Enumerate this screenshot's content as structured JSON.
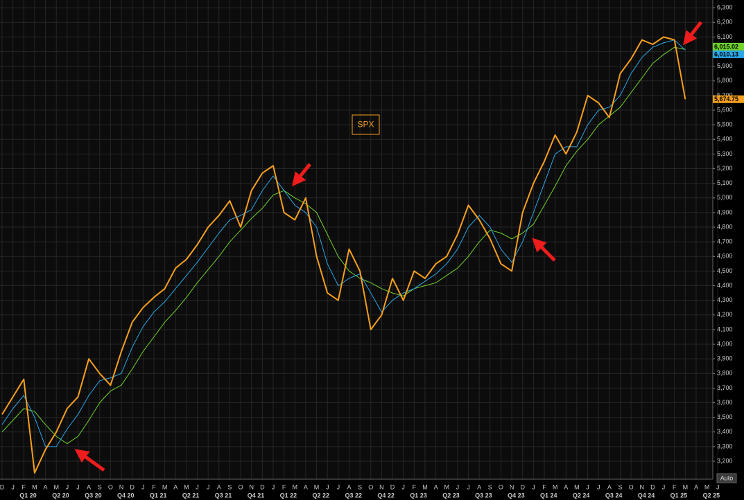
{
  "chart_data": {
    "type": "line",
    "x": [
      "2019-12",
      "2020-01",
      "2020-02",
      "2020-03",
      "2020-04",
      "2020-05",
      "2020-06",
      "2020-07",
      "2020-08",
      "2020-09",
      "2020-10",
      "2020-11",
      "2020-12",
      "2021-01",
      "2021-02",
      "2021-03",
      "2021-04",
      "2021-05",
      "2021-06",
      "2021-07",
      "2021-08",
      "2021-09",
      "2021-10",
      "2021-11",
      "2021-12",
      "2022-01",
      "2022-02",
      "2022-03",
      "2022-04",
      "2022-05",
      "2022-06",
      "2022-07",
      "2022-08",
      "2022-09",
      "2022-10",
      "2022-11",
      "2022-12",
      "2023-01",
      "2023-02",
      "2023-03",
      "2023-04",
      "2023-05",
      "2023-06",
      "2023-07",
      "2023-08",
      "2023-09",
      "2023-10",
      "2023-11",
      "2023-12",
      "2024-01",
      "2024-02",
      "2024-03",
      "2024-04",
      "2024-05",
      "2024-06",
      "2024-07",
      "2024-08",
      "2024-09",
      "2024-10",
      "2024-11",
      "2024-12",
      "2025-01",
      "2025-02",
      "2025-03"
    ],
    "series": [
      {
        "name": "SPX",
        "color": "#f7a01e",
        "last_label": "5,674.75",
        "values": [
          3520,
          3640,
          3760,
          3120,
          3280,
          3400,
          3560,
          3640,
          3900,
          3800,
          3720,
          3950,
          4150,
          4250,
          4320,
          4380,
          4520,
          4580,
          4680,
          4800,
          4880,
          4980,
          4800,
          5050,
          5170,
          5220,
          4900,
          4850,
          5000,
          4600,
          4350,
          4300,
          4650,
          4500,
          4100,
          4200,
          4450,
          4300,
          4500,
          4450,
          4550,
          4600,
          4750,
          4950,
          4850,
          4720,
          4550,
          4500,
          4900,
          5100,
          5250,
          5430,
          5300,
          5450,
          5700,
          5650,
          5550,
          5850,
          5950,
          6080,
          6050,
          6100,
          6080,
          5674.75
        ]
      },
      {
        "color": "#2aa7e8",
        "last_label": "6,010.13",
        "values": [
          3450,
          3560,
          3650,
          3500,
          3300,
          3300,
          3420,
          3520,
          3650,
          3750,
          3770,
          3800,
          3980,
          4120,
          4220,
          4290,
          4380,
          4470,
          4560,
          4660,
          4760,
          4850,
          4880,
          4920,
          5050,
          5150,
          5050,
          4950,
          4900,
          4800,
          4550,
          4400,
          4450,
          4480,
          4350,
          4220,
          4300,
          4350,
          4380,
          4430,
          4480,
          4550,
          4650,
          4800,
          4880,
          4800,
          4650,
          4560,
          4700,
          4900,
          5100,
          5300,
          5350,
          5350,
          5500,
          5600,
          5620,
          5700,
          5850,
          5960,
          6030,
          6060,
          6080,
          6010.13
        ]
      },
      {
        "color": "#6fd32c",
        "last_label": "6,015.02",
        "values": [
          3400,
          3480,
          3560,
          3540,
          3450,
          3370,
          3320,
          3370,
          3480,
          3600,
          3680,
          3720,
          3830,
          3950,
          4050,
          4150,
          4230,
          4320,
          4420,
          4510,
          4600,
          4700,
          4780,
          4860,
          4930,
          5020,
          5050,
          5000,
          4960,
          4900,
          4750,
          4600,
          4500,
          4450,
          4420,
          4380,
          4350,
          4330,
          4380,
          4400,
          4420,
          4470,
          4520,
          4600,
          4700,
          4780,
          4760,
          4720,
          4760,
          4820,
          4950,
          5080,
          5220,
          5320,
          5400,
          5500,
          5560,
          5620,
          5720,
          5820,
          5920,
          5980,
          6030,
          6015.02
        ]
      }
    ],
    "months": [
      "D",
      "J",
      "F",
      "M",
      "A",
      "M",
      "J",
      "J",
      "A",
      "S",
      "O",
      "N",
      "D",
      "J",
      "F",
      "M",
      "A",
      "M",
      "J",
      "J",
      "A",
      "S",
      "O",
      "N",
      "D",
      "J",
      "F",
      "M",
      "A",
      "M",
      "J",
      "J",
      "A",
      "S",
      "O",
      "N",
      "D",
      "J",
      "F",
      "M",
      "A",
      "M",
      "J",
      "J",
      "A",
      "S",
      "O",
      "N",
      "D",
      "J",
      "F",
      "M",
      "A",
      "M",
      "J",
      "J",
      "A",
      "S",
      "O",
      "N",
      "D",
      "J",
      "F",
      "M",
      "A",
      "M",
      "J"
    ],
    "quarters": [
      "Q1 20",
      "Q2 20",
      "Q3 20",
      "Q4 20",
      "Q1 21",
      "Q2 21",
      "Q3 21",
      "Q4 21",
      "Q1 22",
      "Q2 22",
      "Q3 22",
      "Q4 22",
      "Q1 23",
      "Q2 23",
      "Q3 23",
      "Q4 23",
      "Q1 24",
      "Q2 24",
      "Q3 24",
      "Q4 24",
      "Q1 25",
      "Q2 25"
    ],
    "ylim": [
      3077,
      6353
    ],
    "yticks": [
      {
        "value": 3200,
        "label": "3,200"
      },
      {
        "value": 3300,
        "label": "3,300"
      },
      {
        "value": 3400,
        "label": "3,400"
      },
      {
        "value": 3500,
        "label": "3,500"
      },
      {
        "value": 3600,
        "label": "3,600"
      },
      {
        "value": 3700,
        "label": "3,700"
      },
      {
        "value": 3800,
        "label": "3,800"
      },
      {
        "value": 3900,
        "label": "3,900"
      },
      {
        "value": 4000,
        "label": "4,000"
      },
      {
        "value": 4100,
        "label": "4,100"
      },
      {
        "value": 4200,
        "label": "4,200"
      },
      {
        "value": 4300,
        "label": "4,300"
      },
      {
        "value": 4400,
        "label": "4,400"
      },
      {
        "value": 4500,
        "label": "4,500"
      },
      {
        "value": 4600,
        "label": "4,600"
      },
      {
        "value": 4700,
        "label": "4,700"
      },
      {
        "value": 4800,
        "label": "4,800"
      },
      {
        "value": 4900,
        "label": "4,900"
      },
      {
        "value": 5000,
        "label": "5,000"
      },
      {
        "value": 5100,
        "label": "5,100"
      },
      {
        "value": 5200,
        "label": "5,200"
      },
      {
        "value": 5300,
        "label": "5,300"
      },
      {
        "value": 5400,
        "label": "5,400"
      },
      {
        "value": 5500,
        "label": "5,500"
      },
      {
        "value": 5600,
        "label": "5,600"
      },
      {
        "value": 5700,
        "label": "5,700"
      },
      {
        "value": 5800,
        "label": "5,800"
      },
      {
        "value": 5900,
        "label": "5,900"
      },
      {
        "value": 6000,
        "label": "6,000"
      },
      {
        "value": 6100,
        "label": "6,100"
      },
      {
        "value": 6200,
        "label": "6,200"
      },
      {
        "value": 6300,
        "label": "6,300"
      }
    ],
    "grid": true,
    "button": "Auto"
  }
}
